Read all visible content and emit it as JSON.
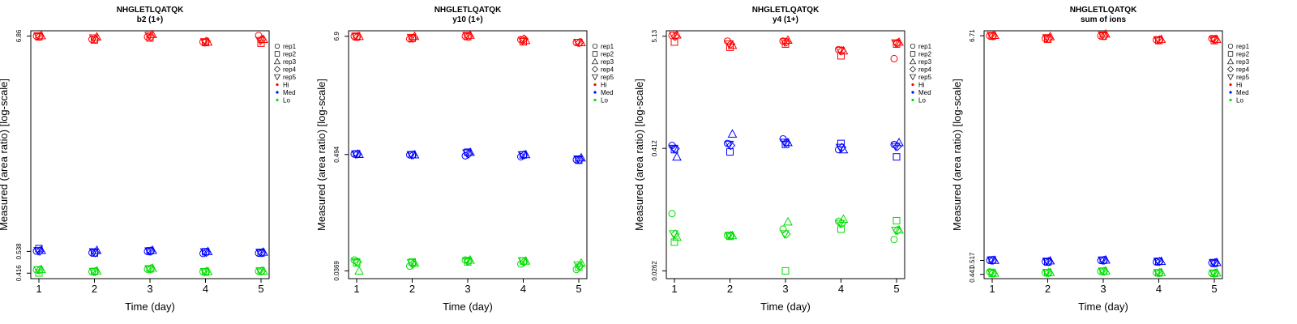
{
  "chart_data": [
    {
      "type": "scatter",
      "title": "NHGLETLQATQK",
      "subtitle": "b2 (1+)",
      "xlabel": "Time (day)",
      "ylabel": "Measured (area ratio) [log-scale]",
      "x_ticks": [
        "1",
        "2",
        "3",
        "4",
        "5"
      ],
      "y_ticks": [
        "0.416",
        "0.538",
        "6.86"
      ],
      "ylim": [
        0.39,
        7.3
      ],
      "legend": {
        "markers": [
          "rep1",
          "rep2",
          "rep3",
          "rep4",
          "rep5"
        ],
        "colors": [
          "Hi",
          "Med",
          "Lo"
        ],
        "position": "right"
      },
      "series": [
        {
          "name": "Hi",
          "color": "#ff0000",
          "points": [
            {
              "x": 1,
              "rep": "rep1",
              "y": 6.86
            },
            {
              "x": 1,
              "rep": "rep2",
              "y": 6.8
            },
            {
              "x": 1,
              "rep": "rep3",
              "y": 6.9
            },
            {
              "x": 1,
              "rep": "rep4",
              "y": 6.83
            },
            {
              "x": 1,
              "rep": "rep5",
              "y": 6.86
            },
            {
              "x": 2,
              "rep": "rep1",
              "y": 6.6
            },
            {
              "x": 2,
              "rep": "rep2",
              "y": 6.55
            },
            {
              "x": 2,
              "rep": "rep3",
              "y": 6.8
            },
            {
              "x": 2,
              "rep": "rep4",
              "y": 6.6
            },
            {
              "x": 2,
              "rep": "rep5",
              "y": 6.7
            },
            {
              "x": 3,
              "rep": "rep1",
              "y": 6.8
            },
            {
              "x": 3,
              "rep": "rep2",
              "y": 6.7
            },
            {
              "x": 3,
              "rep": "rep3",
              "y": 7.0
            },
            {
              "x": 3,
              "rep": "rep4",
              "y": 6.8
            },
            {
              "x": 3,
              "rep": "rep5",
              "y": 6.9
            },
            {
              "x": 4,
              "rep": "rep1",
              "y": 6.4
            },
            {
              "x": 4,
              "rep": "rep2",
              "y": 6.35
            },
            {
              "x": 4,
              "rep": "rep3",
              "y": 6.4
            },
            {
              "x": 4,
              "rep": "rep4",
              "y": 6.45
            },
            {
              "x": 4,
              "rep": "rep5",
              "y": 6.4
            },
            {
              "x": 5,
              "rep": "rep1",
              "y": 6.9
            },
            {
              "x": 5,
              "rep": "rep2",
              "y": 6.3
            },
            {
              "x": 5,
              "rep": "rep3",
              "y": 6.6
            },
            {
              "x": 5,
              "rep": "rep4",
              "y": 6.6
            },
            {
              "x": 5,
              "rep": "rep5",
              "y": 6.5
            }
          ]
        },
        {
          "name": "Med",
          "color": "#0000ff",
          "points": [
            {
              "x": 1,
              "rep": "rep1",
              "y": 0.54
            },
            {
              "x": 1,
              "rep": "rep2",
              "y": 0.556
            },
            {
              "x": 1,
              "rep": "rep3",
              "y": 0.545
            },
            {
              "x": 1,
              "rep": "rep4",
              "y": 0.54
            },
            {
              "x": 1,
              "rep": "rep5",
              "y": 0.542
            },
            {
              "x": 2,
              "rep": "rep1",
              "y": 0.53
            },
            {
              "x": 2,
              "rep": "rep2",
              "y": 0.528
            },
            {
              "x": 2,
              "rep": "rep3",
              "y": 0.545
            },
            {
              "x": 2,
              "rep": "rep4",
              "y": 0.53
            },
            {
              "x": 2,
              "rep": "rep5",
              "y": 0.535
            },
            {
              "x": 3,
              "rep": "rep1",
              "y": 0.538
            },
            {
              "x": 3,
              "rep": "rep2",
              "y": 0.542
            },
            {
              "x": 3,
              "rep": "rep3",
              "y": 0.546
            },
            {
              "x": 3,
              "rep": "rep4",
              "y": 0.54
            },
            {
              "x": 3,
              "rep": "rep5",
              "y": 0.54
            }
          ],
          "points_more": []
        }
      ]
    }
  ]
}
